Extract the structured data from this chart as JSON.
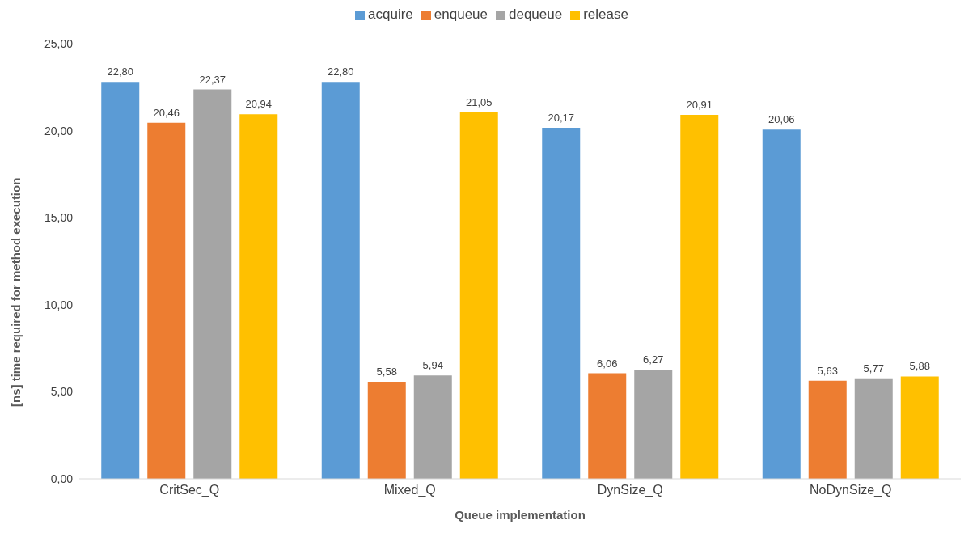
{
  "chart_data": {
    "type": "bar",
    "xlabel": "Queue implementation",
    "ylabel": "[ns] time required for method execution",
    "categories": [
      "CritSec_Q",
      "Mixed_Q",
      "DynSize_Q",
      "NoDynSize_Q"
    ],
    "series": [
      {
        "name": "acquire",
        "color": "#5b9bd5",
        "values": [
          22.8,
          22.8,
          20.17,
          20.06
        ],
        "value_labels": [
          "22,80",
          "22,80",
          "20,17",
          "20,06"
        ]
      },
      {
        "name": "enqueue",
        "color": "#ed7d31",
        "values": [
          20.46,
          5.58,
          6.06,
          5.63
        ],
        "value_labels": [
          "20,46",
          "5,58",
          "6,06",
          "5,63"
        ]
      },
      {
        "name": "dequeue",
        "color": "#a5a5a5",
        "values": [
          22.37,
          5.94,
          6.27,
          5.77
        ],
        "value_labels": [
          "22,37",
          "5,94",
          "6,27",
          "5,77"
        ]
      },
      {
        "name": "release",
        "color": "#ffc000",
        "values": [
          20.94,
          21.05,
          20.91,
          5.88
        ],
        "value_labels": [
          "20,94",
          "21,05",
          "20,91",
          "5,88"
        ]
      }
    ],
    "ylim": [
      0,
      25
    ],
    "yticks": [
      {
        "value": 0,
        "label": "0,00"
      },
      {
        "value": 5,
        "label": "5,00"
      },
      {
        "value": 10,
        "label": "10,00"
      },
      {
        "value": 15,
        "label": "15,00"
      },
      {
        "value": 20,
        "label": "20,00"
      },
      {
        "value": 25,
        "label": "25,00"
      }
    ],
    "grid": false,
    "legend": "top"
  }
}
